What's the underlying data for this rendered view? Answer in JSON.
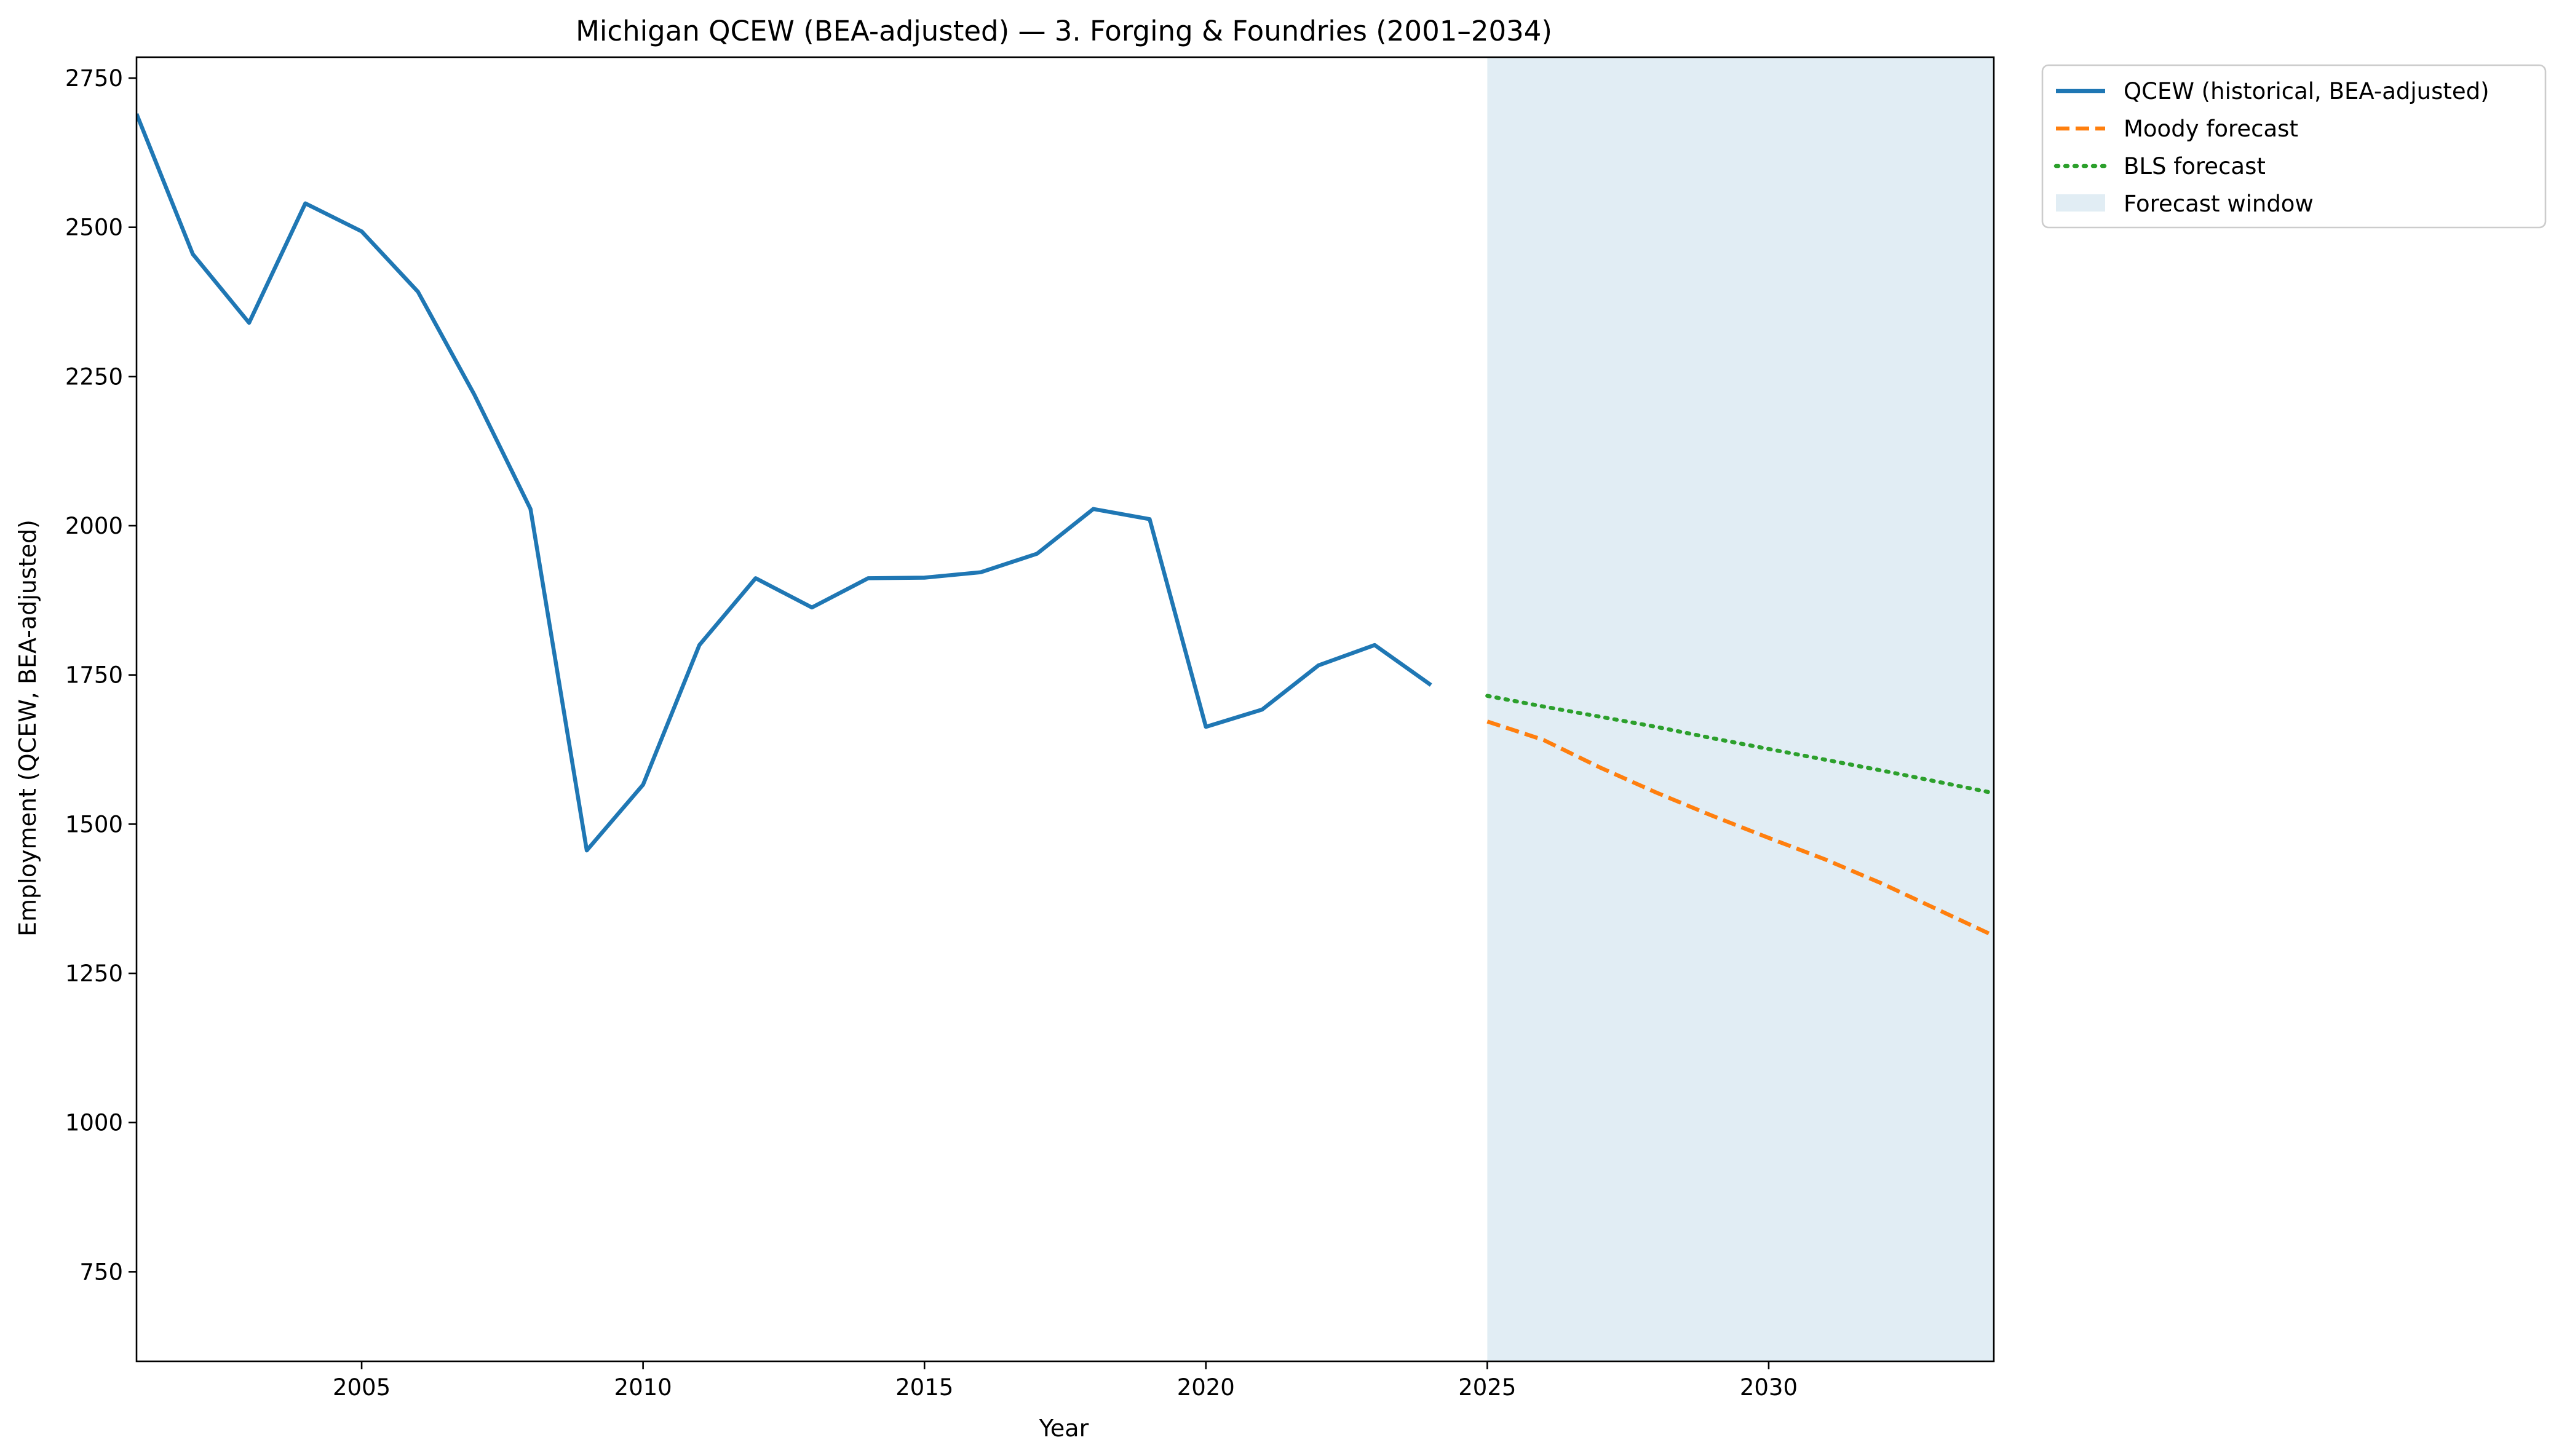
{
  "chart_data": {
    "type": "line",
    "title": "Michigan QCEW (BEA-adjusted) — 3. Forging & Foundries (2001–2034)",
    "xlabel": "Year",
    "ylabel": "Employment (QCEW, BEA-adjusted)",
    "xlim": [
      2001,
      2034
    ],
    "ylim": [
      600,
      2785
    ],
    "x_ticks": [
      2005,
      2010,
      2015,
      2020,
      2025,
      2030
    ],
    "y_ticks": [
      750,
      1000,
      1250,
      1500,
      1750,
      2000,
      2250,
      2500,
      2750
    ],
    "grid": false,
    "legend_position": "outside-top-right",
    "forecast_window": {
      "label": "Forecast window",
      "x_range": [
        2025,
        2034
      ],
      "color": "#e1edf4"
    },
    "series": [
      {
        "name": "QCEW (historical, BEA-adjusted)",
        "color": "#1f77b4",
        "style": "solid",
        "x": [
          2001,
          2002,
          2003,
          2004,
          2005,
          2006,
          2007,
          2008,
          2009,
          2010,
          2011,
          2012,
          2013,
          2014,
          2015,
          2016,
          2017,
          2018,
          2019,
          2020,
          2021,
          2022,
          2023,
          2024
        ],
        "values": [
          2690,
          2455,
          2340,
          2540,
          2493,
          2392,
          2220,
          2028,
          1456,
          1566,
          1800,
          1912,
          1863,
          1912,
          1913,
          1922,
          1953,
          2028,
          2011,
          1663,
          1692,
          1766,
          1800,
          1733
        ]
      },
      {
        "name": "Moody forecast",
        "color": "#ff7f0e",
        "style": "dashed",
        "x": [
          2025,
          2026,
          2027,
          2028,
          2029,
          2030,
          2031,
          2032,
          2033,
          2034
        ],
        "values": [
          1672,
          1641,
          1595,
          1553,
          1514,
          1477,
          1441,
          1401,
          1357,
          1313
        ]
      },
      {
        "name": "BLS forecast",
        "color": "#2ca02c",
        "style": "dotted",
        "x": [
          2025,
          2026,
          2027,
          2028,
          2029,
          2030,
          2031,
          2032,
          2033,
          2034
        ],
        "values": [
          1715,
          1697,
          1680,
          1663,
          1644,
          1626,
          1608,
          1590,
          1571,
          1552
        ]
      }
    ]
  }
}
